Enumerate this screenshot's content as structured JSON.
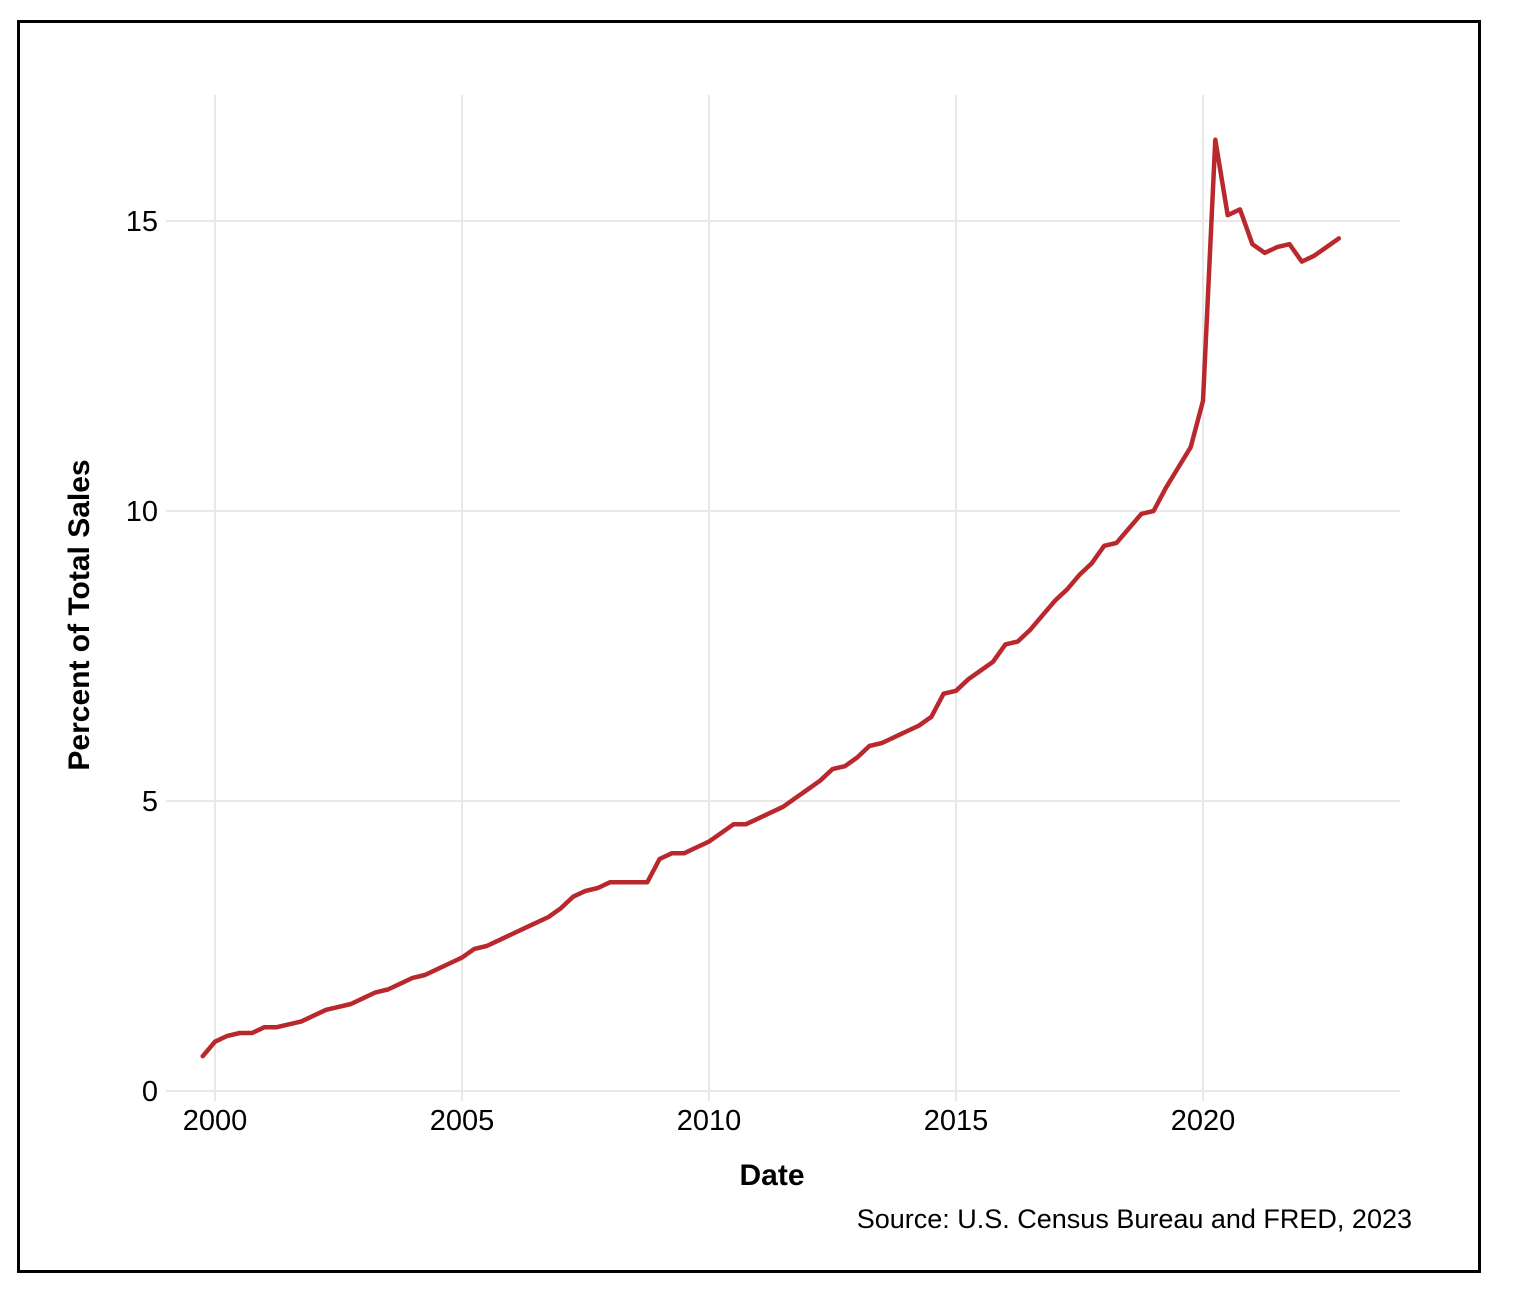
{
  "chart_data": {
    "type": "line",
    "title": "",
    "xlabel": "Date",
    "ylabel": "Percent of Total Sales",
    "source_note": "Source: U.S. Census Bureau and FRED, 2023",
    "legend": false,
    "grid": true,
    "xlim": [
      1998.7,
      2024.0
    ],
    "ylim": [
      0,
      17.2
    ],
    "x_tick_values": [
      2000,
      2005,
      2010,
      2015,
      2020
    ],
    "x_tick_labels": [
      "2000",
      "2005",
      "2010",
      "2015",
      "2020"
    ],
    "y_tick_values": [
      0,
      5,
      10,
      15
    ],
    "y_tick_labels": [
      "0",
      "5",
      "10",
      "15"
    ],
    "colors": {
      "line": "#b9282d",
      "grid": "#e8e8e8",
      "text": "#000000",
      "border": "#000000",
      "background": "#ffffff"
    },
    "series": [
      {
        "name": "Percent of total sales",
        "color": "#b9282d",
        "x": [
          1999.75,
          2000.0,
          2000.25,
          2000.5,
          2000.75,
          2001.0,
          2001.25,
          2001.5,
          2001.75,
          2002.0,
          2002.25,
          2002.5,
          2002.75,
          2003.0,
          2003.25,
          2003.5,
          2003.75,
          2004.0,
          2004.25,
          2004.5,
          2004.75,
          2005.0,
          2005.25,
          2005.5,
          2005.75,
          2006.0,
          2006.25,
          2006.5,
          2006.75,
          2007.0,
          2007.25,
          2007.5,
          2007.75,
          2008.0,
          2008.25,
          2008.5,
          2008.75,
          2009.0,
          2009.25,
          2009.5,
          2009.75,
          2010.0,
          2010.25,
          2010.5,
          2010.75,
          2011.0,
          2011.25,
          2011.5,
          2011.75,
          2012.0,
          2012.25,
          2012.5,
          2012.75,
          2013.0,
          2013.25,
          2013.5,
          2013.75,
          2014.0,
          2014.25,
          2014.5,
          2014.75,
          2015.0,
          2015.25,
          2015.5,
          2015.75,
          2016.0,
          2016.25,
          2016.5,
          2016.75,
          2017.0,
          2017.25,
          2017.5,
          2017.75,
          2018.0,
          2018.25,
          2018.5,
          2018.75,
          2019.0,
          2019.25,
          2019.5,
          2019.75,
          2020.0,
          2020.25,
          2020.5,
          2020.75,
          2021.0,
          2021.25,
          2021.5,
          2021.75,
          2022.0,
          2022.25,
          2022.5,
          2022.75
        ],
        "values": [
          0.6,
          0.85,
          0.95,
          1.0,
          1.0,
          1.1,
          1.1,
          1.15,
          1.2,
          1.3,
          1.4,
          1.45,
          1.5,
          1.6,
          1.7,
          1.75,
          1.85,
          1.95,
          2.0,
          2.1,
          2.2,
          2.3,
          2.45,
          2.5,
          2.6,
          2.7,
          2.8,
          2.9,
          3.0,
          3.15,
          3.35,
          3.45,
          3.5,
          3.6,
          3.6,
          3.6,
          3.6,
          4.0,
          4.1,
          4.1,
          4.2,
          4.3,
          4.45,
          4.6,
          4.6,
          4.7,
          4.8,
          4.9,
          5.05,
          5.2,
          5.35,
          5.55,
          5.6,
          5.75,
          5.95,
          6.0,
          6.1,
          6.2,
          6.3,
          6.45,
          6.85,
          6.9,
          7.1,
          7.25,
          7.4,
          7.7,
          7.75,
          7.95,
          8.2,
          8.45,
          8.65,
          8.9,
          9.1,
          9.4,
          9.45,
          9.7,
          9.95,
          10.0,
          10.4,
          10.75,
          11.1,
          11.9,
          16.4,
          15.1,
          15.2,
          14.6,
          14.45,
          14.55,
          14.6,
          14.3,
          14.4,
          14.55,
          14.7
        ]
      }
    ]
  }
}
